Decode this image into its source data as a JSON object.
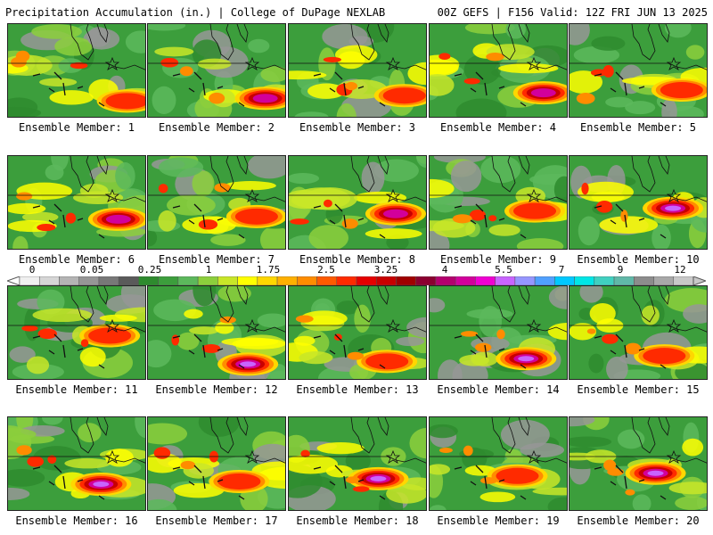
{
  "header": {
    "title": "Precipitation Accumulation (in.) | College of DuPage NEXLAB",
    "run_info": "00Z GEFS | F156 Valid: 12Z FRI JUN 13 2025"
  },
  "members": [
    {
      "label": "Ensemble Member: 1"
    },
    {
      "label": "Ensemble Member: 2"
    },
    {
      "label": "Ensemble Member: 3"
    },
    {
      "label": "Ensemble Member: 4"
    },
    {
      "label": "Ensemble Member: 5"
    },
    {
      "label": "Ensemble Member: 6"
    },
    {
      "label": "Ensemble Member: 7"
    },
    {
      "label": "Ensemble Member: 8"
    },
    {
      "label": "Ensemble Member: 9"
    },
    {
      "label": "Ensemble Member: 10"
    },
    {
      "label": "Ensemble Member: 11"
    },
    {
      "label": "Ensemble Member: 12"
    },
    {
      "label": "Ensemble Member: 13"
    },
    {
      "label": "Ensemble Member: 14"
    },
    {
      "label": "Ensemble Member: 15"
    },
    {
      "label": "Ensemble Member: 16"
    },
    {
      "label": "Ensemble Member: 17"
    },
    {
      "label": "Ensemble Member: 18"
    },
    {
      "label": "Ensemble Member: 19"
    },
    {
      "label": "Ensemble Member: 20"
    }
  ],
  "colorbar": {
    "labels": [
      "0",
      "0.05",
      "0.25",
      "1",
      "1.75",
      "2.5",
      "3.25",
      "4",
      "5.5",
      "7",
      "9",
      "12"
    ],
    "colors": [
      "#f0f0f0",
      "#d6d6d6",
      "#b4b4b4",
      "#969696",
      "#787878",
      "#5a5a5a",
      "#2e8b2e",
      "#3c9e3c",
      "#5cb85c",
      "#8ccf3c",
      "#c8e628",
      "#ffff00",
      "#ffd700",
      "#ffb000",
      "#ff8c00",
      "#ff5a00",
      "#ff2a00",
      "#e60000",
      "#c80000",
      "#a00000",
      "#8b0030",
      "#b4006e",
      "#d2009b",
      "#f000d2",
      "#c864ff",
      "#9696ff",
      "#50a0ff",
      "#00c8ff",
      "#00e6e6",
      "#40d0c0",
      "#60b8a8",
      "#8c8c8c",
      "#a8a8a8",
      "#c8c8c8"
    ]
  }
}
